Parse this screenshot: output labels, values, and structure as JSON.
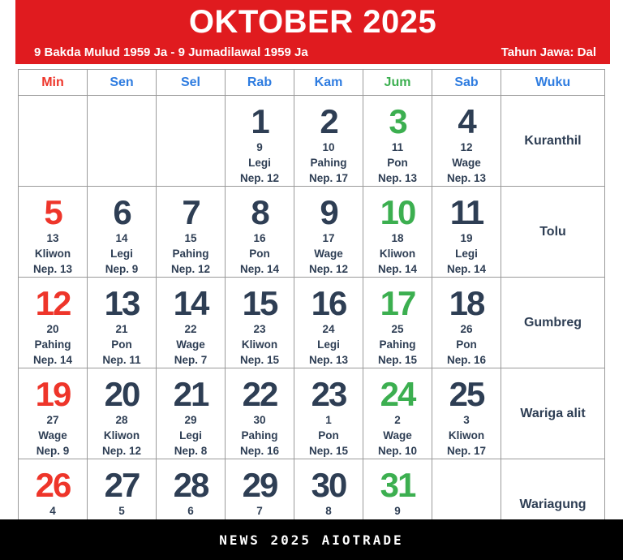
{
  "header": {
    "title": "OKTOBER 2025",
    "subtitle_left": "9 Bakda Mulud 1959 Ja - 9 Jumadilawal 1959 Ja",
    "subtitle_right": "Tahun Jawa: Dal"
  },
  "colors": {
    "header_bg": "#e01b1f",
    "dark": "#2e3e54",
    "red": "#ee352a",
    "green": "#3caf50",
    "blue": "#2e7ce0",
    "border": "#9a9a9a",
    "footer_bg": "#000000"
  },
  "day_headers": [
    {
      "label": "Min",
      "color": "red"
    },
    {
      "label": "Sen",
      "color": "blue"
    },
    {
      "label": "Sel",
      "color": "blue"
    },
    {
      "label": "Rab",
      "color": "blue"
    },
    {
      "label": "Kam",
      "color": "blue"
    },
    {
      "label": "Jum",
      "color": "green"
    },
    {
      "label": "Sab",
      "color": "blue"
    },
    {
      "label": "Wuku",
      "color": "blue"
    }
  ],
  "weeks": [
    {
      "wuku": "Kuranthil",
      "days": [
        null,
        null,
        null,
        {
          "date": "1",
          "jav": "9",
          "pasaran": "Legi",
          "nep": "Nep. 12",
          "color": "dark"
        },
        {
          "date": "2",
          "jav": "10",
          "pasaran": "Pahing",
          "nep": "Nep. 17",
          "color": "dark"
        },
        {
          "date": "3",
          "jav": "11",
          "pasaran": "Pon",
          "nep": "Nep. 13",
          "color": "green"
        },
        {
          "date": "4",
          "jav": "12",
          "pasaran": "Wage",
          "nep": "Nep. 13",
          "color": "dark"
        }
      ]
    },
    {
      "wuku": "Tolu",
      "days": [
        {
          "date": "5",
          "jav": "13",
          "pasaran": "Kliwon",
          "nep": "Nep. 13",
          "color": "red"
        },
        {
          "date": "6",
          "jav": "14",
          "pasaran": "Legi",
          "nep": "Nep. 9",
          "color": "dark"
        },
        {
          "date": "7",
          "jav": "15",
          "pasaran": "Pahing",
          "nep": "Nep. 12",
          "color": "dark"
        },
        {
          "date": "8",
          "jav": "16",
          "pasaran": "Pon",
          "nep": "Nep. 14",
          "color": "dark"
        },
        {
          "date": "9",
          "jav": "17",
          "pasaran": "Wage",
          "nep": "Nep. 12",
          "color": "dark"
        },
        {
          "date": "10",
          "jav": "18",
          "pasaran": "Kliwon",
          "nep": "Nep. 14",
          "color": "green"
        },
        {
          "date": "11",
          "jav": "19",
          "pasaran": "Legi",
          "nep": "Nep. 14",
          "color": "dark"
        }
      ]
    },
    {
      "wuku": "Gumbreg",
      "days": [
        {
          "date": "12",
          "jav": "20",
          "pasaran": "Pahing",
          "nep": "Nep. 14",
          "color": "red"
        },
        {
          "date": "13",
          "jav": "21",
          "pasaran": "Pon",
          "nep": "Nep. 11",
          "color": "dark"
        },
        {
          "date": "14",
          "jav": "22",
          "pasaran": "Wage",
          "nep": "Nep. 7",
          "color": "dark"
        },
        {
          "date": "15",
          "jav": "23",
          "pasaran": "Kliwon",
          "nep": "Nep. 15",
          "color": "dark"
        },
        {
          "date": "16",
          "jav": "24",
          "pasaran": "Legi",
          "nep": "Nep. 13",
          "color": "dark"
        },
        {
          "date": "17",
          "jav": "25",
          "pasaran": "Pahing",
          "nep": "Nep. 15",
          "color": "green"
        },
        {
          "date": "18",
          "jav": "26",
          "pasaran": "Pon",
          "nep": "Nep. 16",
          "color": "dark"
        }
      ]
    },
    {
      "wuku": "Wariga alit",
      "days": [
        {
          "date": "19",
          "jav": "27",
          "pasaran": "Wage",
          "nep": "Nep. 9",
          "color": "red"
        },
        {
          "date": "20",
          "jav": "28",
          "pasaran": "Kliwon",
          "nep": "Nep. 12",
          "color": "dark"
        },
        {
          "date": "21",
          "jav": "29",
          "pasaran": "Legi",
          "nep": "Nep. 8",
          "color": "dark"
        },
        {
          "date": "22",
          "jav": "30",
          "pasaran": "Pahing",
          "nep": "Nep. 16",
          "color": "dark"
        },
        {
          "date": "23",
          "jav": "1",
          "pasaran": "Pon",
          "nep": "Nep. 15",
          "color": "dark"
        },
        {
          "date": "24",
          "jav": "2",
          "pasaran": "Wage",
          "nep": "Nep. 10",
          "color": "green"
        },
        {
          "date": "25",
          "jav": "3",
          "pasaran": "Kliwon",
          "nep": "Nep. 17",
          "color": "dark"
        }
      ]
    },
    {
      "wuku": "Wariagung",
      "days": [
        {
          "date": "26",
          "jav": "4",
          "pasaran": "",
          "nep": "",
          "color": "red"
        },
        {
          "date": "27",
          "jav": "5",
          "pasaran": "",
          "nep": "",
          "color": "dark"
        },
        {
          "date": "28",
          "jav": "6",
          "pasaran": "",
          "nep": "",
          "color": "dark"
        },
        {
          "date": "29",
          "jav": "7",
          "pasaran": "",
          "nep": "",
          "color": "dark"
        },
        {
          "date": "30",
          "jav": "8",
          "pasaran": "",
          "nep": "",
          "color": "dark"
        },
        {
          "date": "31",
          "jav": "9",
          "pasaran": "",
          "nep": "",
          "color": "green"
        },
        null
      ]
    }
  ],
  "footer": {
    "text": "NEWS 2025 AIOTRADE"
  }
}
